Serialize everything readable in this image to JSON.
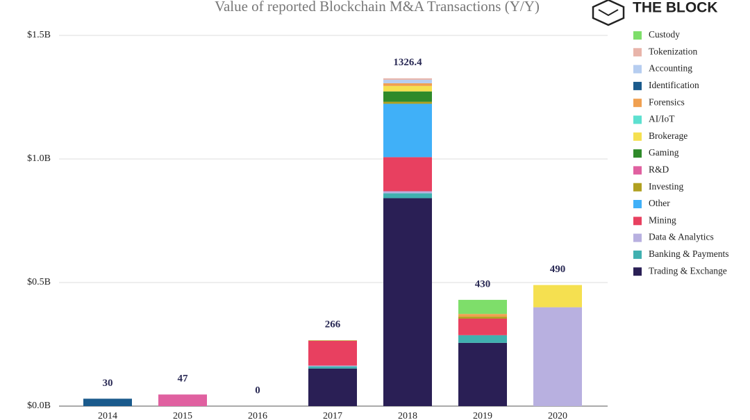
{
  "logo": "THE BLOCK",
  "chart_data": {
    "type": "stacked-bar",
    "title": "Value of reported Blockchain M&A Transactions (Y/Y)",
    "categories": [
      "2014",
      "2015",
      "2016",
      "2017",
      "2018",
      "2019",
      "2020"
    ],
    "series": [
      {
        "name": "Custody",
        "color": "#7ede6a",
        "values": [
          0,
          0,
          0,
          0,
          0,
          57,
          0
        ]
      },
      {
        "name": "Tokenization",
        "color": "#e8b4aa",
        "values": [
          0,
          0,
          0,
          0,
          6,
          0,
          0
        ]
      },
      {
        "name": "Accounting",
        "color": "#b6cdf0",
        "values": [
          0,
          0,
          0,
          0,
          14,
          0,
          0
        ]
      },
      {
        "name": "Identification",
        "color": "#1a5a8c",
        "values": [
          30,
          0,
          0,
          0,
          0,
          0,
          0
        ]
      },
      {
        "name": "Forensics",
        "color": "#f0a050",
        "values": [
          0,
          0,
          0,
          0,
          11,
          11,
          0
        ]
      },
      {
        "name": "AI/IoT",
        "color": "#5de0d0",
        "values": [
          0,
          0,
          0,
          0,
          0,
          0,
          0
        ]
      },
      {
        "name": "Brokerage",
        "color": "#f5e050",
        "values": [
          0,
          0,
          0,
          0,
          22,
          0,
          90
        ]
      },
      {
        "name": "Gaming",
        "color": "#2f8a2a",
        "values": [
          0,
          0,
          0,
          0,
          42,
          0,
          0
        ]
      },
      {
        "name": "R&D",
        "color": "#e060a0",
        "values": [
          0,
          47,
          0,
          0,
          0,
          0,
          0
        ]
      },
      {
        "name": "Investing",
        "color": "#b0a020",
        "values": [
          0,
          0,
          0,
          2,
          8,
          8,
          0
        ]
      },
      {
        "name": "Other",
        "color": "#40b0f8",
        "values": [
          0,
          0,
          0,
          0,
          216,
          0,
          0
        ]
      },
      {
        "name": "Mining",
        "color": "#e84060",
        "values": [
          0,
          0,
          0,
          100,
          138,
          67,
          0
        ]
      },
      {
        "name": "Data & Analytics",
        "color": "#b8b0e0",
        "values": [
          0,
          0,
          0,
          3,
          8,
          0,
          400
        ]
      },
      {
        "name": "Banking & Payments",
        "color": "#40b0b0",
        "values": [
          0,
          0,
          0,
          9,
          20,
          31,
          0
        ]
      },
      {
        "name": "Trading & Exchange",
        "color": "#2a1f55",
        "values": [
          0,
          0,
          0,
          152,
          841.4,
          256,
          0
        ]
      }
    ],
    "totals": [
      30,
      47,
      0,
      266,
      1326.4,
      430,
      490
    ],
    "ylim": [
      0,
      1500
    ],
    "yticks": [
      {
        "value": 0,
        "label": "$0.0B"
      },
      {
        "value": 500,
        "label": "$0.5B"
      },
      {
        "value": 1000,
        "label": "$1.0B"
      },
      {
        "value": 1500,
        "label": "$1.5B"
      }
    ],
    "grid": true
  }
}
